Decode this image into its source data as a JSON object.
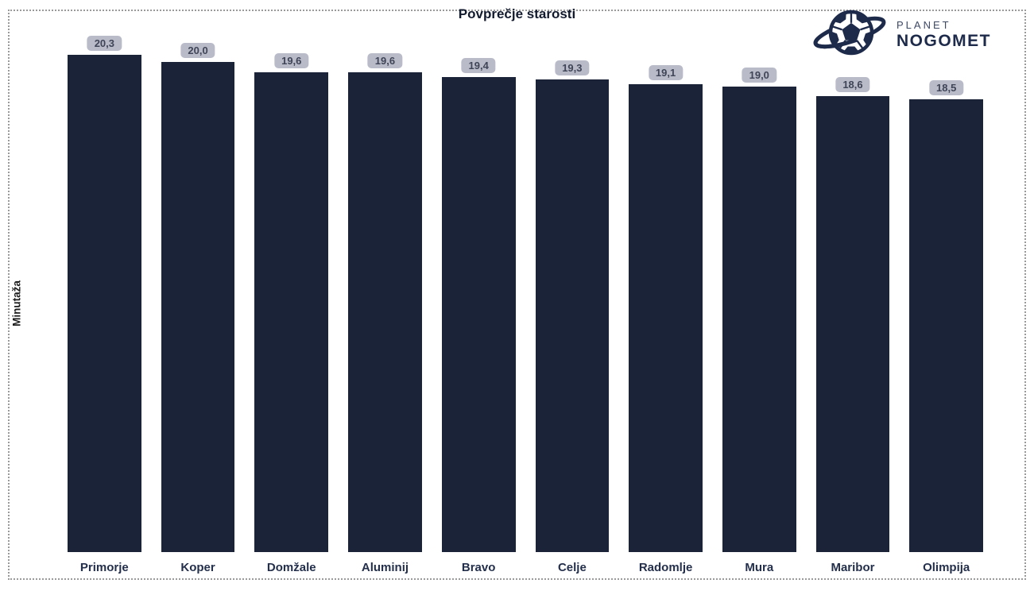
{
  "title": "Povprečje starosti",
  "y_axis_label": "Minutaža",
  "logo": {
    "line1": "PLANET",
    "line2": "NOGOMET",
    "icon": "soccer-ball-with-ring-icon"
  },
  "chart_data": {
    "type": "bar",
    "title": "Povprečje starosti",
    "xlabel": "",
    "ylabel": "Minutaža",
    "categories": [
      "Primorje",
      "Koper",
      "Domžale",
      "Aluminij",
      "Bravo",
      "Celje",
      "Radomlje",
      "Mura",
      "Maribor",
      "Olimpija"
    ],
    "values": [
      20.3,
      20.0,
      19.6,
      19.6,
      19.4,
      19.3,
      19.1,
      19.0,
      18.6,
      18.5
    ],
    "value_labels": [
      "20,3",
      "20,0",
      "19,6",
      "19,6",
      "19,4",
      "19,3",
      "19,1",
      "19,0",
      "18,6",
      "18,5"
    ],
    "ylim": [
      0,
      20.3
    ],
    "grid": false,
    "legend": false,
    "colors": {
      "bar": "#1a2337",
      "badge_bg": "#b9bbc9",
      "badge_text": "#3f4556",
      "category_label": "#232f4b",
      "title": "#121a2e",
      "logo_navy": "#1d2a4a",
      "logo_sub": "#3e4964",
      "frame_dots": "#9a9a9a"
    }
  }
}
